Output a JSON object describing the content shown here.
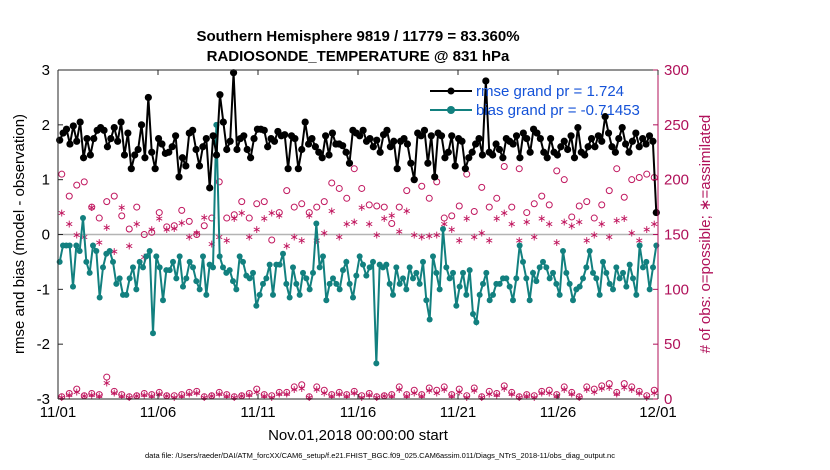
{
  "chart_data": {
    "type": "line",
    "title_line1": "Southern Hemisphere 9819 / 11779 = 83.360%",
    "title_line2": "RADIOSONDE_TEMPERATURE @ 831 hPa",
    "ylabel_left": "rmse and bias (model - observation)",
    "ylabel_right": "# of obs: o=possible; ∗=assimilated",
    "xlabel": "Nov.01,2018 00:00:00 start",
    "footnote": "data file: /Users/raeder/DAI/ATM_forcXX/CAM6_setup/f.e21.FHIST_BGC.f09_025.CAM6assim.011/Diags_NTrS_2018-11/obs_diag_output.nc",
    "ylim_left": [
      -3,
      3
    ],
    "ylim_right": [
      0,
      300
    ],
    "xlim": [
      0,
      30
    ],
    "left_ticks": [
      "-3",
      "-2",
      "-1",
      "0",
      "1",
      "2",
      "3"
    ],
    "right_ticks": [
      "0",
      "50",
      "100",
      "150",
      "200",
      "250",
      "300"
    ],
    "x_ticks": [
      {
        "label": "11/01",
        "x": 0
      },
      {
        "label": "11/06",
        "x": 5
      },
      {
        "label": "11/11",
        "x": 10
      },
      {
        "label": "11/16",
        "x": 15
      },
      {
        "label": "11/21",
        "x": 20
      },
      {
        "label": "11/26",
        "x": 25
      },
      {
        "label": "12/01",
        "x": 30
      }
    ],
    "legend": [
      {
        "label": "rmse grand pr = 1.724",
        "color": "#000000"
      },
      {
        "label": "bias grand pr = -0.71453",
        "color": "#12807f"
      }
    ],
    "rmse_color": "#000000",
    "bias_color": "#12807f",
    "obs_color": "#c0165e",
    "zero_line_color": "#b4b4b4",
    "rmse": [
      1.72,
      1.85,
      1.92,
      1.65,
      1.98,
      1.7,
      2.05,
      1.4,
      1.75,
      1.45,
      1.75,
      1.9,
      1.95,
      1.9,
      1.6,
      1.75,
      1.95,
      1.7,
      2.05,
      1.45,
      1.85,
      1.2,
      1.45,
      1.55,
      2.0,
      1.4,
      2.5,
      1.5,
      1.2,
      1.75,
      1.65,
      1.48,
      1.5,
      1.6,
      1.8,
      1.05,
      1.4,
      1.25,
      1.85,
      1.9,
      1.55,
      1.25,
      1.6,
      1.75,
      0.85,
      1.8,
      1.45,
      2.55,
      2.05,
      1.55,
      1.7,
      2.95,
      1.55,
      1.75,
      1.8,
      1.55,
      1.4,
      1.75,
      1.92,
      1.92,
      1.9,
      1.6,
      1.75,
      1.7,
      1.88,
      1.8,
      1.82,
      1.2,
      1.8,
      1.75,
      1.2,
      1.55,
      2.05,
      1.65,
      1.75,
      1.6,
      1.5,
      1.4,
      1.8,
      1.45,
      1.85,
      1.65,
      1.65,
      1.62,
      1.5,
      1.3,
      1.9,
      1.85,
      1.8,
      1.9,
      1.7,
      1.75,
      1.6,
      1.72,
      1.5,
      1.82,
      1.9,
      1.6,
      1.7,
      1.2,
      1.7,
      1.75,
      1.65,
      1.3,
      1.0,
      1.85,
      1.8,
      1.9,
      1.3,
      1.8,
      1.05,
      1.85,
      1.8,
      1.4,
      1.5,
      1.8,
      1.25,
      1.75,
      1.7,
      1.2,
      1.4,
      1.5,
      1.65,
      1.75,
      1.45,
      2.8,
      1.5,
      1.45,
      1.65,
      1.55,
      1.4,
      1.75,
      1.7,
      1.65,
      1.8,
      1.4,
      1.85,
      1.75,
      1.5,
      1.92,
      1.85,
      1.75,
      1.5,
      1.4,
      1.75,
      1.5,
      1.45,
      1.6,
      1.7,
      1.55,
      1.8,
      1.4,
      1.95,
      1.5,
      1.45,
      1.6,
      1.75,
      1.6,
      1.8,
      1.7,
      2.15,
      1.85,
      1.6,
      1.5,
      1.75,
      1.95,
      1.65,
      1.5,
      1.7,
      1.85,
      1.6,
      1.75,
      1.65,
      1.8,
      1.7,
      0.4
    ],
    "bias": [
      -0.5,
      -0.2,
      -0.2,
      -0.2,
      -0.95,
      -0.2,
      -0.3,
      0.3,
      -0.5,
      -0.7,
      -0.2,
      -0.3,
      -1.15,
      -0.6,
      -0.35,
      -0.3,
      -0.5,
      -0.9,
      -0.8,
      -1.1,
      -1.1,
      -0.8,
      -0.6,
      -1.0,
      -0.5,
      -0.6,
      -0.4,
      -0.3,
      -1.8,
      -0.4,
      -0.6,
      -1.2,
      -0.65,
      -0.65,
      -0.5,
      -0.8,
      -0.4,
      -0.95,
      -0.8,
      -0.5,
      -0.6,
      -0.85,
      -1.0,
      -0.4,
      -1.1,
      -0.55,
      -0.6,
      2.0,
      -0.4,
      -0.6,
      -0.7,
      -0.65,
      -0.85,
      -1.0,
      -0.4,
      -0.5,
      -0.75,
      -0.8,
      -0.7,
      -1.3,
      -1.1,
      -0.9,
      -0.8,
      -0.55,
      -1.1,
      -0.55,
      -0.55,
      -0.35,
      -0.9,
      -1.15,
      -0.6,
      -0.9,
      -1.1,
      -0.7,
      -0.8,
      -1.0,
      -0.7,
      0.2,
      -0.6,
      -0.4,
      -1.2,
      -0.9,
      -0.8,
      -0.9,
      -1.0,
      -0.65,
      -0.5,
      -0.9,
      -1.15,
      -0.75,
      -0.4,
      -0.55,
      -0.75,
      -0.6,
      -0.5,
      -2.35,
      -0.55,
      -0.6,
      -0.55,
      -0.9,
      -1.1,
      -0.6,
      -0.9,
      -0.8,
      -1.0,
      -0.6,
      -0.8,
      -0.7,
      -0.9,
      -0.5,
      -1.2,
      -1.55,
      -0.4,
      -0.7,
      -1.0,
      0.1,
      -0.6,
      -0.8,
      -0.7,
      -1.3,
      -0.95,
      -0.7,
      -1.1,
      -0.65,
      -1.45,
      -1.6,
      -1.1,
      -0.9,
      -0.7,
      -1.2,
      -1.1,
      -0.9,
      -0.9,
      -0.8,
      -0.8,
      -0.95,
      -1.2,
      -0.8,
      -0.2,
      -0.5,
      -0.8,
      -1.2,
      -0.7,
      -0.85,
      -0.6,
      -0.5,
      -0.6,
      -0.8,
      -0.7,
      -0.9,
      -1.1,
      -0.3,
      -0.7,
      -0.9,
      -1.2,
      -1.0,
      -0.95,
      -0.8,
      -0.6,
      -0.3,
      -0.7,
      -0.8,
      -1.1,
      -0.5,
      -0.7,
      -0.9,
      -1.0,
      -0.6,
      -0.8,
      -0.7,
      -0.95,
      -0.55,
      -0.8,
      -1.1,
      -0.2,
      -0.6,
      -0.5,
      -1.0,
      -0.6,
      -0.2
    ],
    "obs_possible_high": [
      205,
      185,
      195,
      198,
      175,
      165,
      180,
      185,
      167,
      155,
      175,
      150,
      152,
      170,
      157,
      158,
      172,
      162,
      150,
      158,
      165,
      198,
      165,
      168,
      180,
      165,
      178,
      180,
      145,
      170,
      190,
      175,
      178,
      170,
      175,
      180,
      197,
      192,
      183,
      210,
      192,
      177,
      176,
      175,
      160,
      175,
      190,
      200,
      194,
      183,
      198,
      165,
      167,
      176,
      205,
      171,
      193,
      175,
      183,
      212,
      175,
      210,
      170,
      178,
      185,
      177,
      208,
      200,
      166,
      176,
      180,
      165,
      177,
      190,
      210,
      184,
      200,
      202,
      205,
      202
    ],
    "obs_assim_high": [
      170,
      160,
      150,
      148,
      175,
      143,
      157,
      135,
      175,
      140,
      160,
      130,
      155,
      165,
      155,
      156,
      161,
      148,
      152,
      166,
      142,
      148,
      145,
      165,
      170,
      148,
      155,
      165,
      170,
      168,
      140,
      148,
      145,
      168,
      145,
      152,
      172,
      148,
      160,
      162,
      175,
      160,
      150,
      165,
      168,
      153,
      172,
      150,
      148,
      149,
      150,
      160,
      155,
      145,
      165,
      148,
      152,
      145,
      165,
      170,
      160,
      145,
      162,
      148,
      165,
      160,
      143,
      162,
      158,
      162,
      145,
      150,
      160,
      148,
      163,
      165,
      152,
      145,
      155,
      160
    ],
    "obs_possible_low": [
      2,
      5,
      9,
      3,
      5,
      4,
      20,
      7,
      4,
      2,
      3,
      5,
      4,
      6,
      3,
      3,
      4,
      6,
      7,
      2,
      3,
      6,
      4,
      2,
      3,
      5,
      9,
      4,
      3,
      6,
      6,
      11,
      13,
      2,
      11,
      8,
      4,
      6,
      4,
      7,
      3,
      5,
      2,
      3,
      4,
      11,
      4,
      8,
      4,
      10,
      8,
      11,
      4,
      9,
      3,
      10,
      2,
      7,
      5,
      12,
      6,
      2,
      4,
      3,
      7,
      8,
      4,
      11,
      6,
      2,
      11,
      9,
      12,
      14,
      6,
      14,
      11,
      7,
      3,
      8
    ],
    "obs_assim_low": [
      2,
      4,
      7,
      3,
      4,
      3,
      15,
      6,
      3,
      2,
      3,
      4,
      3,
      5,
      3,
      2,
      3,
      5,
      6,
      2,
      3,
      5,
      3,
      2,
      3,
      4,
      7,
      3,
      2,
      5,
      5,
      9,
      10,
      2,
      9,
      6,
      3,
      5,
      3,
      6,
      2,
      4,
      2,
      3,
      3,
      9,
      3,
      6,
      3,
      8,
      6,
      9,
      3,
      7,
      2,
      8,
      2,
      5,
      4,
      10,
      5,
      2,
      3,
      2,
      6,
      6,
      3,
      9,
      5,
      2,
      9,
      7,
      10,
      11,
      5,
      11,
      9,
      6,
      2,
      6
    ]
  }
}
